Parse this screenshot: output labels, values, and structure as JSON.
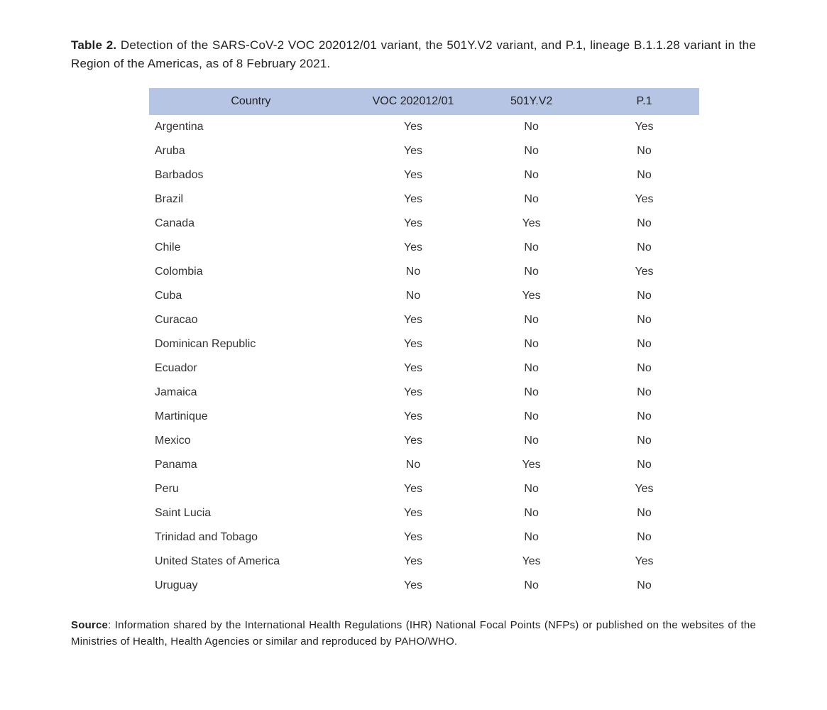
{
  "caption": {
    "label": "Table 2.",
    "text": " Detection of the SARS-CoV-2 VOC 202012/01 variant, the 501Y.V2 variant, and P.1, lineage B.1.1.28 variant in the Region of the Americas, as of 8 February 2021."
  },
  "table": {
    "type": "table",
    "header_bg_color": "#b7c5e4",
    "text_color": "#222222",
    "font_size": 16,
    "row_padding_v": 8,
    "columns": [
      "Country",
      "VOC 202012/01",
      "501Y.V2",
      "P.1"
    ],
    "col_align": [
      "left",
      "center",
      "center",
      "center"
    ],
    "col_widths_pct": [
      37,
      22,
      21,
      20
    ],
    "rows": [
      [
        "Argentina",
        "Yes",
        "No",
        "Yes"
      ],
      [
        "Aruba",
        "Yes",
        "No",
        "No"
      ],
      [
        "Barbados",
        "Yes",
        "No",
        "No"
      ],
      [
        "Brazil",
        "Yes",
        "No",
        "Yes"
      ],
      [
        "Canada",
        "Yes",
        "Yes",
        "No"
      ],
      [
        "Chile",
        "Yes",
        "No",
        "No"
      ],
      [
        "Colombia",
        "No",
        "No",
        "Yes"
      ],
      [
        "Cuba",
        "No",
        "Yes",
        "No"
      ],
      [
        "Curacao",
        "Yes",
        "No",
        "No"
      ],
      [
        "Dominican Republic",
        "Yes",
        "No",
        "No"
      ],
      [
        "Ecuador",
        "Yes",
        "No",
        "No"
      ],
      [
        "Jamaica",
        "Yes",
        "No",
        "No"
      ],
      [
        "Martinique",
        "Yes",
        "No",
        "No"
      ],
      [
        "Mexico",
        "Yes",
        "No",
        "No"
      ],
      [
        "Panama",
        "No",
        "Yes",
        "No"
      ],
      [
        "Peru",
        "Yes",
        "No",
        "Yes"
      ],
      [
        "Saint Lucia",
        "Yes",
        "No",
        "No"
      ],
      [
        "Trinidad and Tobago",
        "Yes",
        "No",
        "No"
      ],
      [
        "United States of America",
        "Yes",
        "Yes",
        "Yes"
      ],
      [
        "Uruguay",
        "Yes",
        "No",
        "No"
      ]
    ]
  },
  "source": {
    "label": "Source",
    "text": ": Information shared by the International Health Regulations (IHR) National Focal Points (NFPs) or published on the websites of the Ministries of Health, Health Agencies or similar and reproduced by PAHO/WHO."
  }
}
